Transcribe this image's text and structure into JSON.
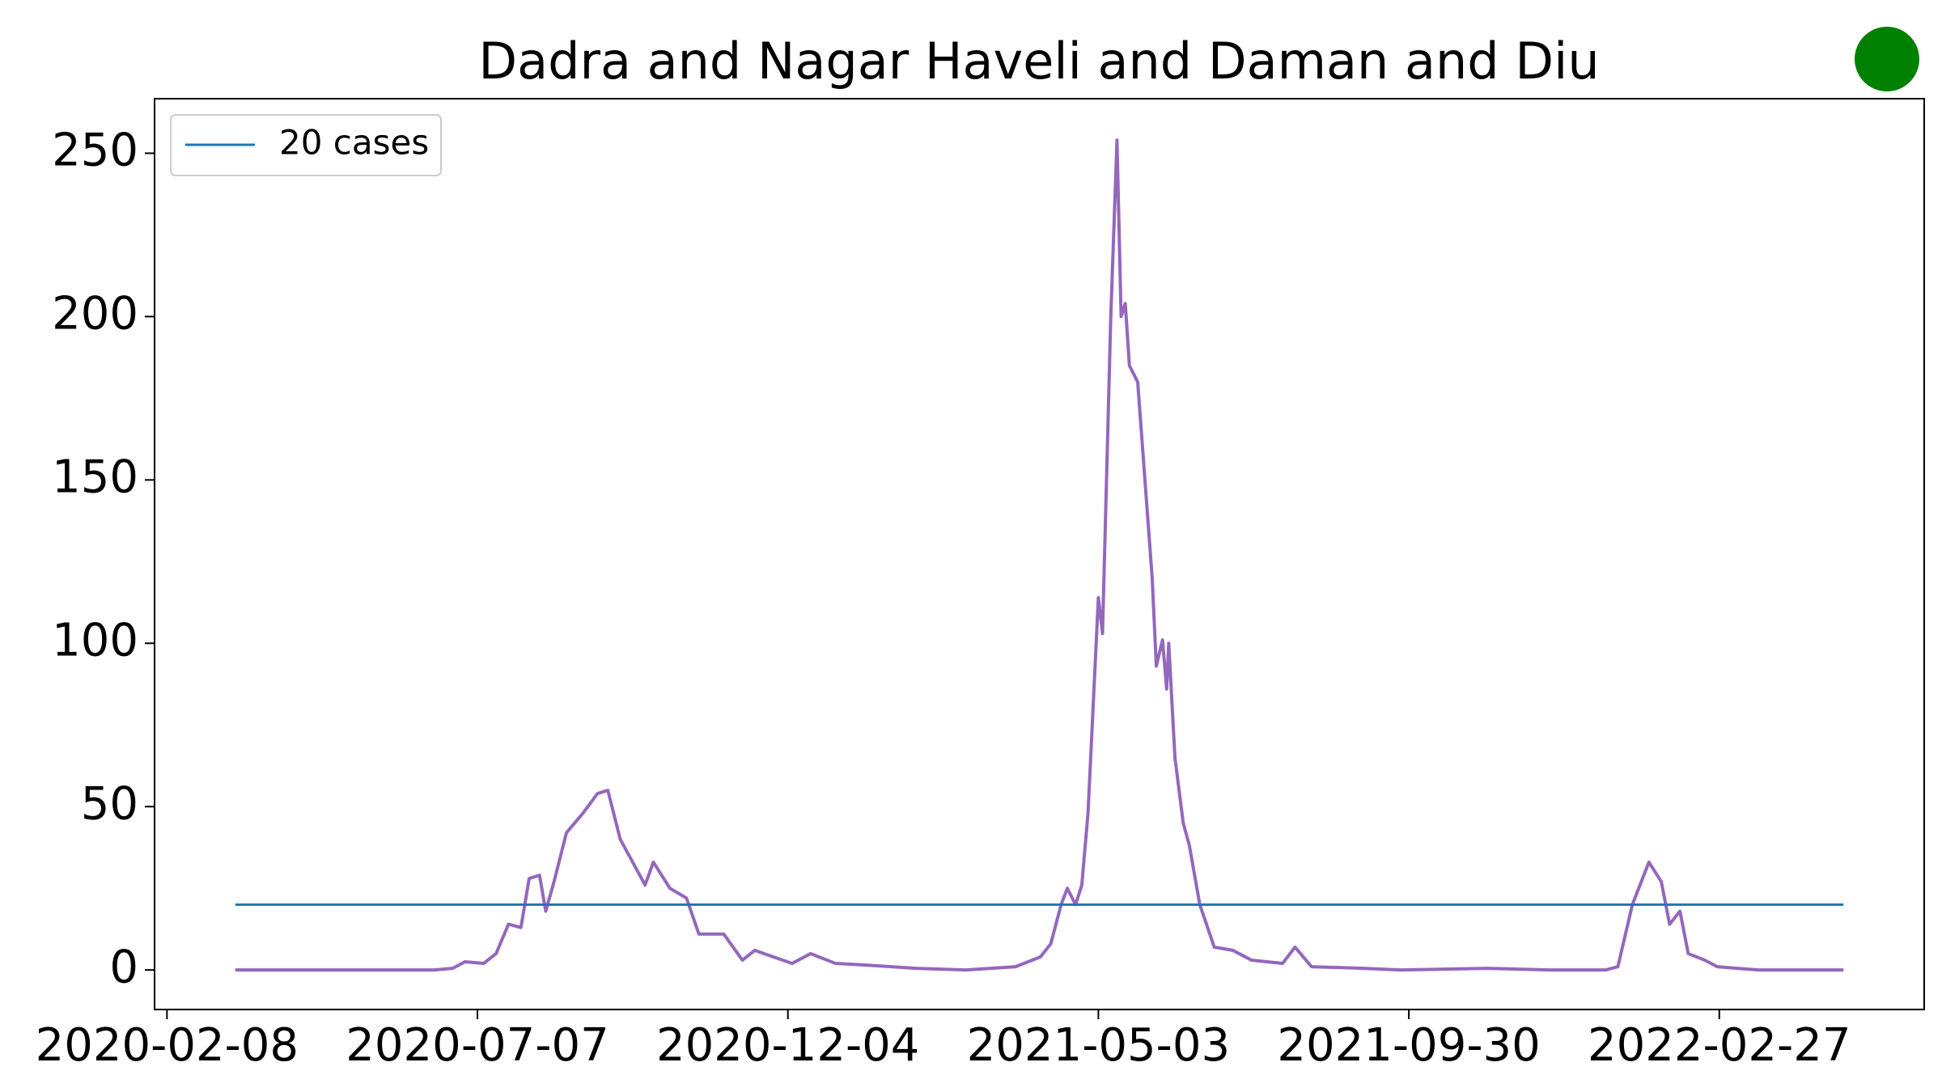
{
  "chart_data": {
    "type": "line",
    "title": "Dadra and Nagar Haveli and Daman and Diu",
    "series": [
      {
        "color": "#9467bd",
        "x": [
          "2020-03-12",
          "2020-06-16",
          "2020-06-25",
          "2020-07-01",
          "2020-07-10",
          "2020-07-16",
          "2020-07-22",
          "2020-07-28",
          "2020-08-01",
          "2020-08-06",
          "2020-08-09",
          "2020-08-13",
          "2020-08-19",
          "2020-08-27",
          "2020-09-03",
          "2020-09-08",
          "2020-09-14",
          "2020-09-20",
          "2020-09-26",
          "2020-09-30",
          "2020-10-08",
          "2020-10-16",
          "2020-10-22",
          "2020-11-03",
          "2020-11-12",
          "2020-11-18",
          "2020-11-27",
          "2020-12-06",
          "2020-12-15",
          "2020-12-27",
          "2021-01-11",
          "2021-02-04",
          "2021-02-28",
          "2021-03-24",
          "2021-04-05",
          "2021-04-10",
          "2021-04-15",
          "2021-04-18",
          "2021-04-22",
          "2021-04-25",
          "2021-04-28",
          "2021-05-03",
          "2021-05-05",
          "2021-05-09",
          "2021-05-12",
          "2021-05-14",
          "2021-05-16",
          "2021-05-18",
          "2021-05-22",
          "2021-05-29",
          "2021-05-31",
          "2021-06-03",
          "2021-06-05",
          "2021-06-06",
          "2021-06-09",
          "2021-06-13",
          "2021-06-16",
          "2021-06-21",
          "2021-06-28",
          "2021-07-07",
          "2021-07-16",
          "2021-07-31",
          "2021-08-06",
          "2021-08-14",
          "2021-09-08",
          "2021-09-26",
          "2021-11-07",
          "2021-12-07",
          "2022-01-03",
          "2022-01-09",
          "2022-01-16",
          "2022-01-24",
          "2022-01-30",
          "2022-02-03",
          "2022-02-08",
          "2022-02-12",
          "2022-02-20",
          "2022-02-26",
          "2022-03-18",
          "2022-04-28"
        ],
        "values": [
          0,
          0,
          0.5,
          2.5,
          2,
          5,
          14,
          13,
          28,
          29,
          18,
          27,
          42,
          48,
          54,
          55,
          40,
          33,
          26,
          33,
          25,
          22,
          11,
          11,
          3,
          6,
          4,
          2,
          5,
          2,
          1.5,
          0.5,
          0,
          1,
          4,
          8,
          20,
          25,
          20,
          26,
          48,
          114,
          103,
          200,
          254,
          200,
          204,
          185,
          180,
          120,
          93,
          101,
          86,
          100,
          65,
          45,
          38,
          20,
          7,
          6,
          3,
          2,
          7,
          1,
          0.5,
          0,
          0.5,
          0,
          0,
          1,
          20,
          33,
          27,
          14,
          18,
          5,
          3,
          1,
          0,
          0
        ]
      },
      {
        "name": "20 cases",
        "color": "#1f77b4",
        "x": [
          "2020-03-12",
          "2022-04-28"
        ],
        "values": [
          20,
          20
        ]
      }
    ],
    "xlim": [
      "2020-02-02",
      "2022-06-06"
    ],
    "xticks": [
      "2020-02-08",
      "2020-07-07",
      "2020-12-04",
      "2021-05-03",
      "2021-09-30",
      "2022-02-27"
    ],
    "ylim": [
      -12.1,
      266.7
    ],
    "yticks": [
      0,
      50,
      100,
      150,
      200,
      250
    ],
    "legend": "upper left"
  }
}
